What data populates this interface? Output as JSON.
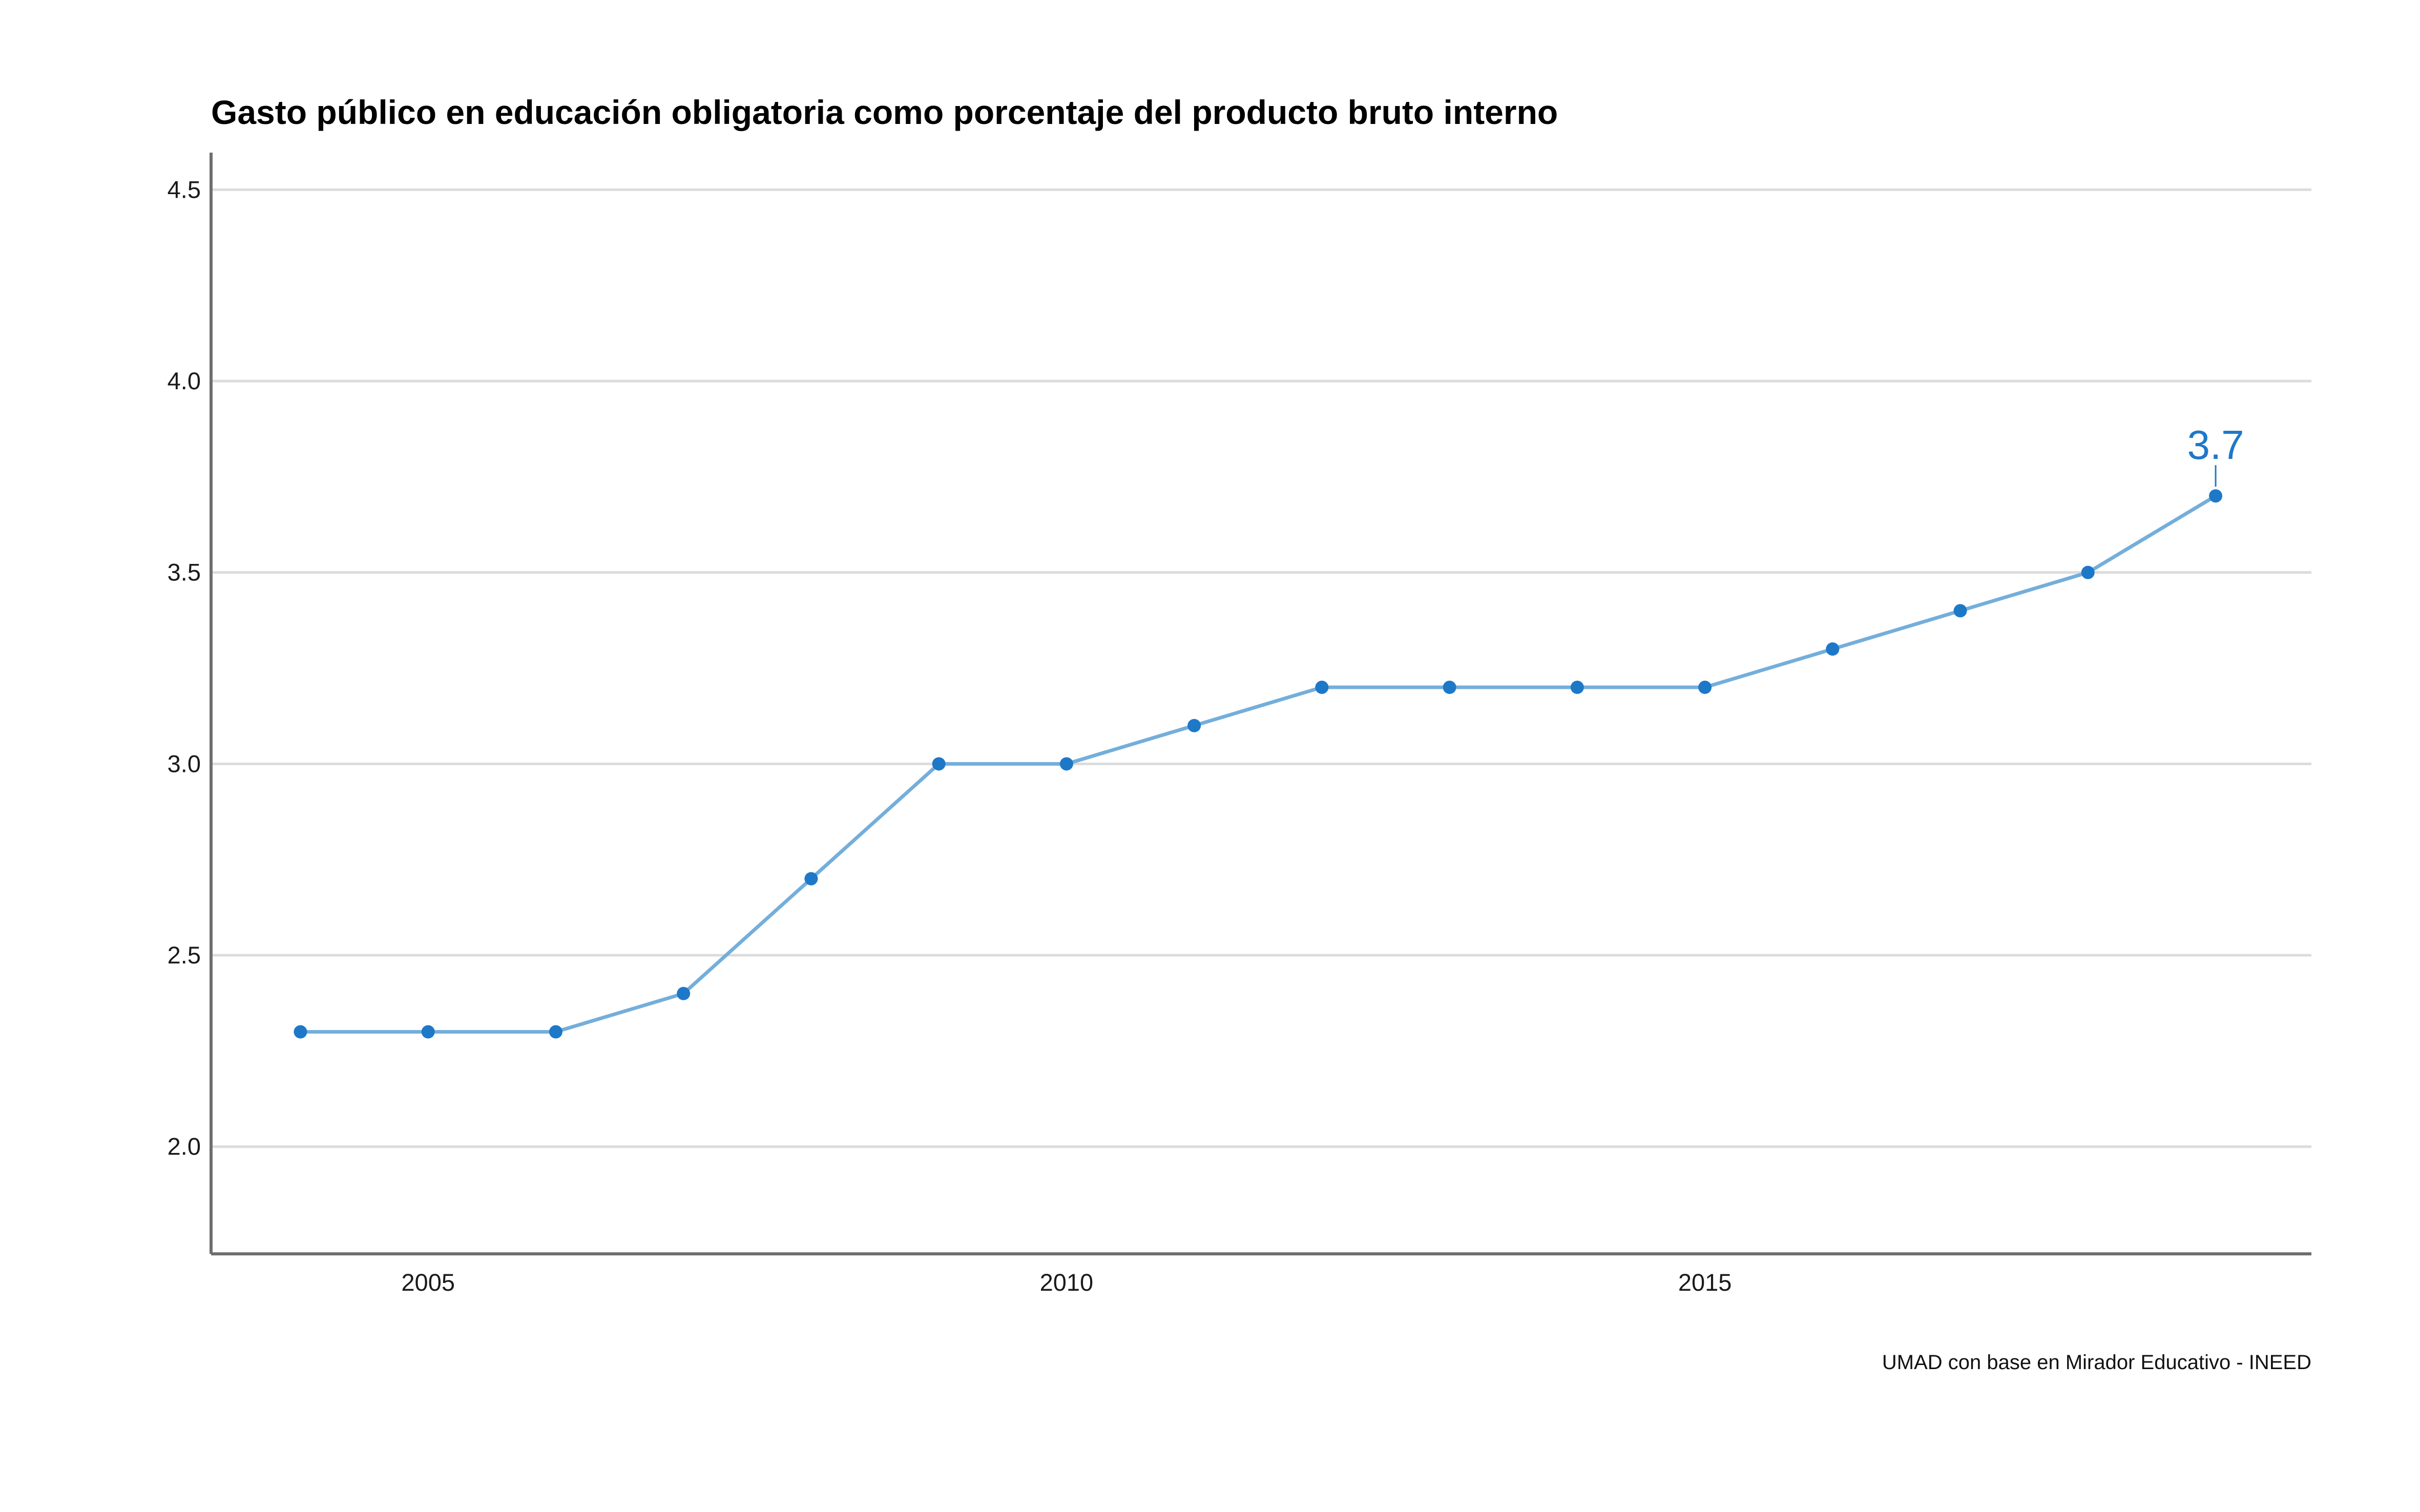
{
  "chart_data": {
    "type": "line",
    "title": "Gasto público en educación obligatoria como porcentaje del producto bruto interno",
    "xlabel": "",
    "ylabel": "",
    "caption": "UMAD con base en Mirador Educativo - INEED",
    "x": [
      2004,
      2005,
      2006,
      2007,
      2008,
      2009,
      2010,
      2011,
      2012,
      2013,
      2014,
      2015,
      2016,
      2017,
      2018,
      2019
    ],
    "series": [
      {
        "values": [
          2.3,
          2.3,
          2.3,
          2.4,
          2.7,
          3.0,
          3.0,
          3.1,
          3.2,
          3.2,
          3.2,
          3.2,
          3.3,
          3.4,
          3.5,
          3.7
        ]
      }
    ],
    "xlim": [
      2003.3,
      2019.75
    ],
    "ylim": [
      1.72,
      4.57
    ],
    "x_ticks": [
      2005,
      2010,
      2015
    ],
    "x_tick_labels": [
      "2005",
      "2010",
      "2015"
    ],
    "y_ticks": [
      2.0,
      2.5,
      3.0,
      3.5,
      4.0,
      4.5
    ],
    "y_tick_labels": [
      "2.0",
      "2.5",
      "3.0",
      "3.5",
      "4.0",
      "4.5"
    ],
    "annotation": {
      "x": 2019,
      "y": 3.7,
      "label": "3.7"
    },
    "grid": "horizontal",
    "legend": "none",
    "colors": {
      "line": "#74aedb",
      "points": "#1e78c8",
      "label": "#1e78c8",
      "grid": "#dcdcdc",
      "axis": "#6e6e6e"
    }
  }
}
